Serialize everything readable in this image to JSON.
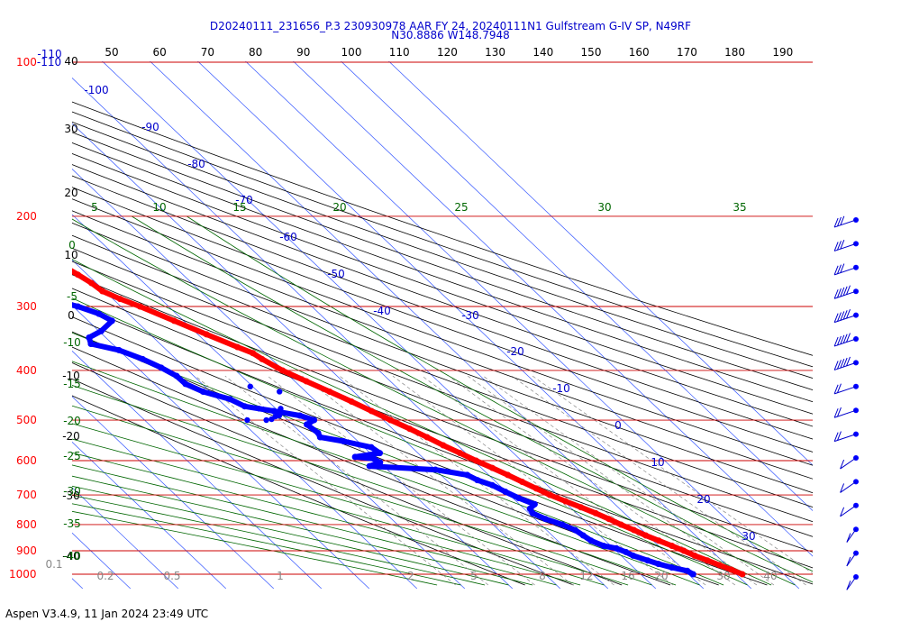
{
  "chart_data": {
    "type": "skew-t",
    "title": "D20240111_231656_P.3 230930978 AAR FY 24, 20240111N1 Gulfstream G-IV SP, N49RF",
    "subtitle": "N30.8886 W148.7948",
    "footer": "Aspen V3.4.9, 11 Jan 2024  23:49 UTC",
    "pressure_levels": [
      1000,
      900,
      800,
      700,
      600,
      500,
      400,
      300,
      200,
      100
    ],
    "pressure_labels": [
      "1000",
      "900",
      "800",
      "700",
      "600",
      "500",
      "400",
      "300",
      "200",
      "100-110"
    ],
    "top_scale_labels": [
      "50",
      "60",
      "70",
      "80",
      "90",
      "100",
      "110",
      "120",
      "130",
      "140",
      "150",
      "160",
      "170",
      "180",
      "190"
    ],
    "left_scale_labels": [
      "40",
      "30",
      "20",
      "10",
      "0",
      "-10",
      "-20",
      "-30",
      "-40"
    ],
    "mixing_ratio_labels": [
      "0.1",
      "0.2",
      "0.5",
      "1",
      "2",
      "5",
      "8",
      "12",
      "16",
      "20",
      "30",
      "40"
    ],
    "isotherm_labels": [
      "-110",
      "-100",
      "-90",
      "-80",
      "-70",
      "-60",
      "-50",
      "-40",
      "-30",
      "-20",
      "-10",
      "0",
      "10",
      "20",
      "30"
    ],
    "moist_adiabat_top_labels": [
      "5",
      "10",
      "15",
      "20",
      "25",
      "30",
      "35"
    ],
    "moist_adiabat_left_labels": [
      "0",
      "-5",
      "-10",
      "-15",
      "-20",
      "-25",
      "-30",
      "-35",
      "-40"
    ],
    "temperature_profile": {
      "color": "#ff0000",
      "points": [
        [
          1000,
          21.3
        ],
        [
          980,
          20.0
        ],
        [
          960,
          18.5
        ],
        [
          940,
          17.0
        ],
        [
          920,
          15.4
        ],
        [
          900,
          14.2
        ],
        [
          880,
          12.8
        ],
        [
          860,
          11.2
        ],
        [
          840,
          9.6
        ],
        [
          820,
          8.3
        ],
        [
          800,
          6.8
        ],
        [
          780,
          5.5
        ],
        [
          760,
          4.0
        ],
        [
          740,
          2.2
        ],
        [
          720,
          0.3
        ],
        [
          700,
          -1.6
        ],
        [
          680,
          -3.0
        ],
        [
          660,
          -4.5
        ],
        [
          640,
          -6.0
        ],
        [
          620,
          -7.7
        ],
        [
          600,
          -9.5
        ],
        [
          580,
          -11.2
        ],
        [
          560,
          -13.0
        ],
        [
          540,
          -14.6
        ],
        [
          520,
          -16.4
        ],
        [
          500,
          -18.5
        ],
        [
          480,
          -20.5
        ],
        [
          460,
          -22.6
        ],
        [
          440,
          -25.0
        ],
        [
          420,
          -27.6
        ],
        [
          400,
          -30.2
        ],
        [
          380,
          -32.0
        ],
        [
          370,
          -32.6
        ],
        [
          360,
          -34.5
        ],
        [
          340,
          -38.2
        ],
        [
          320,
          -42.0
        ],
        [
          300,
          -46.0
        ],
        [
          290,
          -48.5
        ],
        [
          280,
          -50.5
        ],
        [
          270,
          -51.0
        ],
        [
          260,
          -52.0
        ],
        [
          250,
          -53.2
        ],
        [
          240,
          -54.6
        ],
        [
          230,
          -55.0
        ],
        [
          220,
          -53.5
        ],
        [
          210,
          -54.5
        ],
        [
          200,
          -54.8
        ],
        [
          195,
          -54.2
        ]
      ]
    },
    "dewpoint_profile": {
      "color": "#0000ff",
      "points": [
        [
          1000,
          11.0
        ],
        [
          985,
          10.5
        ],
        [
          970,
          8.0
        ],
        [
          955,
          6.0
        ],
        [
          940,
          4.5
        ],
        [
          920,
          2.5
        ],
        [
          905,
          1.8
        ],
        [
          890,
          0.6
        ],
        [
          880,
          -1.5
        ],
        [
          860,
          -3.0
        ],
        [
          840,
          -3.5
        ],
        [
          820,
          -4.0
        ],
        [
          800,
          -5.5
        ],
        [
          780,
          -7.8
        ],
        [
          760,
          -9.2
        ],
        [
          745,
          -8.8
        ],
        [
          730,
          -6.8
        ],
        [
          710,
          -8.8
        ],
        [
          690,
          -10.2
        ],
        [
          670,
          -11.5
        ],
        [
          655,
          -13.5
        ],
        [
          640,
          -14.5
        ],
        [
          625,
          -20.0
        ],
        [
          615,
          -33.0
        ],
        [
          605,
          -30.0
        ],
        [
          595,
          -30.5
        ],
        [
          590,
          -34.0
        ],
        [
          580,
          -28.0
        ],
        [
          565,
          -28.5
        ],
        [
          550,
          -33.0
        ],
        [
          540,
          -37.0
        ],
        [
          530,
          -36.5
        ],
        [
          510,
          -37.0
        ],
        [
          500,
          -34.5
        ],
        [
          490,
          -36.5
        ],
        [
          480,
          -41.0
        ],
        [
          470,
          -46.0
        ],
        [
          455,
          -47.5
        ],
        [
          440,
          -51.5
        ],
        [
          425,
          -53.5
        ],
        [
          410,
          -53.6
        ],
        [
          395,
          -55.0
        ],
        [
          380,
          -57.0
        ],
        [
          365,
          -60.0
        ],
        [
          355,
          -64.5
        ],
        [
          345,
          -63.5
        ],
        [
          335,
          -59.5
        ],
        [
          320,
          -55.0
        ],
        [
          310,
          -56.2
        ],
        [
          300,
          -59.0
        ],
        [
          292,
          -62.8
        ],
        [
          285,
          -66.5
        ],
        [
          272,
          -72.3
        ],
        [
          265,
          -76.5
        ],
        [
          255,
          -80.0
        ],
        [
          245,
          -80.0
        ],
        [
          235,
          -78.5
        ],
        [
          228,
          -78.2
        ]
      ]
    },
    "dewpoint_scatter": [
      [
        500,
        -48.5
      ],
      [
        500,
        -44.5
      ],
      [
        498,
        -43.2
      ],
      [
        492,
        -41.8
      ],
      [
        490,
        -40.8
      ],
      [
        475,
        -39.0
      ],
      [
        440,
        -35.5
      ],
      [
        430,
        -40.5
      ],
      [
        475,
        -43.5
      ]
    ],
    "wind_barb_count": 16
  }
}
